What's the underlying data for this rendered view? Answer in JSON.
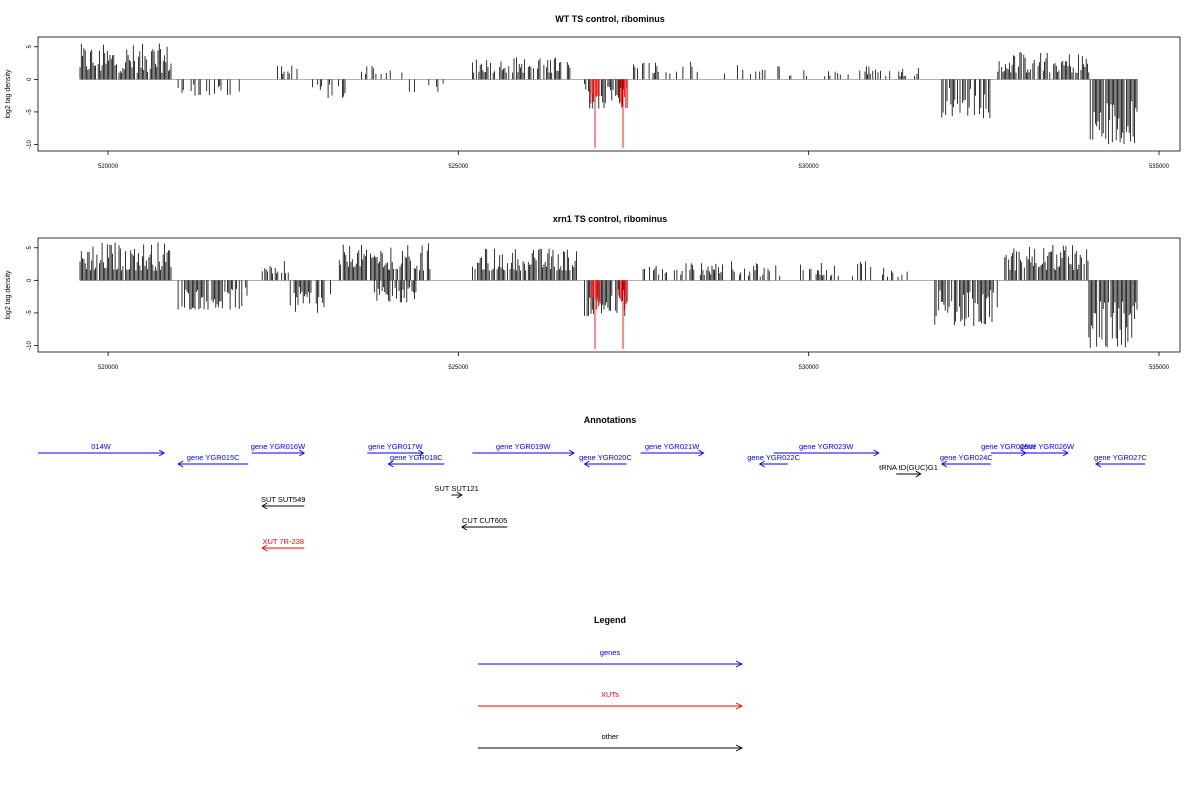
{
  "chart_data": [
    {
      "type": "bar",
      "title": "WT TS control, ribominus",
      "ylabel": "log2 tag density",
      "xlabel": "",
      "xlim": [
        519000,
        535300
      ],
      "ylim": [
        -11,
        6.5
      ],
      "x_ticks": [
        520000,
        525000,
        530000,
        535000
      ],
      "x_tick_labels": [
        "520000",
        "525000",
        "530000",
        "535000"
      ],
      "y_ticks": [
        -10,
        -5,
        0,
        5
      ],
      "y_tick_labels": [
        "-10",
        "-5",
        "0",
        "5"
      ],
      "grid": false,
      "colors": {
        "bars": "#000000",
        "highlight": "#ff0000",
        "baseline": "#999999"
      },
      "series": [
        {
          "values": [
            {
              "start": 519600,
              "end": 520900,
              "min": 1.0,
              "max": 5.5,
              "density": 0.9
            },
            {
              "start": 521000,
              "end": 521900,
              "min": -2.5,
              "max": -0.5,
              "density": 0.35
            },
            {
              "start": 522400,
              "end": 522700,
              "min": 0.8,
              "max": 2.2,
              "density": 0.5
            },
            {
              "start": 522900,
              "end": 523400,
              "min": -3.0,
              "max": -0.5,
              "density": 0.35
            },
            {
              "start": 523600,
              "end": 524200,
              "min": 0.8,
              "max": 2.5,
              "density": 0.45
            },
            {
              "start": 524300,
              "end": 524900,
              "min": -2.0,
              "max": -0.5,
              "density": 0.3
            },
            {
              "start": 525200,
              "end": 526600,
              "min": 1.0,
              "max": 3.5,
              "density": 0.6
            },
            {
              "start": 526800,
              "end": 527400,
              "min": -4.5,
              "max": -0.5,
              "density": 0.7
            },
            {
              "start": 527500,
              "end": 528500,
              "min": 0.8,
              "max": 2.8,
              "density": 0.4
            },
            {
              "start": 528800,
              "end": 531600,
              "min": 0.5,
              "max": 2.2,
              "density": 0.25
            },
            {
              "start": 531900,
              "end": 532600,
              "min": -6.0,
              "max": -1.0,
              "density": 0.7
            },
            {
              "start": 532700,
              "end": 534000,
              "min": 1.0,
              "max": 4.2,
              "density": 0.8
            },
            {
              "start": 534000,
              "end": 534700,
              "min": -10.0,
              "max": -3.0,
              "density": 0.9
            }
          ],
          "highlights": [
            {
              "x": 526950,
              "y": -10.5
            },
            {
              "x": 527350,
              "y": -10.5
            }
          ]
        }
      ]
    },
    {
      "type": "bar",
      "title": "xrn1 TS control, ribominus",
      "ylabel": "log2 tag density",
      "xlabel": "",
      "xlim": [
        519000,
        535300
      ],
      "ylim": [
        -11,
        6.5
      ],
      "x_ticks": [
        520000,
        525000,
        530000,
        535000
      ],
      "x_tick_labels": [
        "520000",
        "525000",
        "530000",
        "535000"
      ],
      "y_ticks": [
        -10,
        -5,
        0,
        5
      ],
      "y_tick_labels": [
        "-10",
        "-5",
        "0",
        "5"
      ],
      "grid": false,
      "colors": {
        "bars": "#000000",
        "highlight": "#ff0000",
        "baseline": "#999999"
      },
      "series": [
        {
          "values": [
            {
              "start": 519600,
              "end": 520900,
              "min": 1.5,
              "max": 6.0,
              "density": 0.95
            },
            {
              "start": 521000,
              "end": 522000,
              "min": -4.5,
              "max": -1.0,
              "density": 0.8
            },
            {
              "start": 522200,
              "end": 522600,
              "min": 1.0,
              "max": 3.0,
              "density": 0.6
            },
            {
              "start": 522600,
              "end": 523200,
              "min": -5.0,
              "max": -1.0,
              "density": 0.7
            },
            {
              "start": 523300,
              "end": 524000,
              "min": 2.0,
              "max": 5.5,
              "density": 0.9
            },
            {
              "start": 523800,
              "end": 524400,
              "min": -3.5,
              "max": -1.0,
              "density": 0.5
            },
            {
              "start": 524000,
              "end": 524600,
              "min": 1.5,
              "max": 6.0,
              "density": 0.8
            },
            {
              "start": 525200,
              "end": 526700,
              "min": 1.5,
              "max": 5.0,
              "density": 0.85
            },
            {
              "start": 526800,
              "end": 527400,
              "min": -5.5,
              "max": -1.0,
              "density": 0.9
            },
            {
              "start": 527600,
              "end": 528800,
              "min": 0.8,
              "max": 3.0,
              "density": 0.55
            },
            {
              "start": 528900,
              "end": 531500,
              "min": 0.5,
              "max": 3.0,
              "density": 0.35
            },
            {
              "start": 531800,
              "end": 532700,
              "min": -7.0,
              "max": -1.5,
              "density": 0.85
            },
            {
              "start": 532800,
              "end": 534000,
              "min": 1.5,
              "max": 5.5,
              "density": 0.9
            },
            {
              "start": 534000,
              "end": 534700,
              "min": -10.5,
              "max": -3.0,
              "density": 0.95
            }
          ],
          "highlights": [
            {
              "x": 526950,
              "y": -10.5
            },
            {
              "x": 527350,
              "y": -10.5
            }
          ]
        }
      ]
    }
  ],
  "annotations": {
    "title": "Annotations",
    "xlim": [
      519000,
      535300
    ],
    "items": [
      {
        "label": "014W",
        "start": 519000,
        "end": 520800,
        "strand": "+",
        "type": "genes",
        "row": 0
      },
      {
        "label": "gene YGR015C",
        "start": 521000,
        "end": 522000,
        "strand": "-",
        "type": "genes",
        "row": 1
      },
      {
        "label": "gene YGR016W",
        "start": 522050,
        "end": 522800,
        "strand": "+",
        "type": "genes",
        "row": 0
      },
      {
        "label": "gene YGR017W",
        "start": 523700,
        "end": 524500,
        "strand": "+",
        "type": "genes",
        "row": 0
      },
      {
        "label": "gene YGR018C",
        "start": 524000,
        "end": 524800,
        "strand": "-",
        "type": "genes",
        "row": 1
      },
      {
        "label": "gene YGR019W",
        "start": 525200,
        "end": 526650,
        "strand": "+",
        "type": "genes",
        "row": 0
      },
      {
        "label": "gene YGR020C",
        "start": 526800,
        "end": 527400,
        "strand": "-",
        "type": "genes",
        "row": 1
      },
      {
        "label": "gene YGR021W",
        "start": 527600,
        "end": 528500,
        "strand": "+",
        "type": "genes",
        "row": 0
      },
      {
        "label": "gene YGR022C",
        "start": 529300,
        "end": 529700,
        "strand": "-",
        "type": "genes",
        "row": 1
      },
      {
        "label": "gene YGR023W",
        "start": 529500,
        "end": 531000,
        "strand": "+",
        "type": "genes",
        "row": 0
      },
      {
        "label": "tRNA tD(GUC)G1",
        "start": 531250,
        "end": 531600,
        "strand": "+",
        "type": "other",
        "row": 2
      },
      {
        "label": "gene YGR024C",
        "start": 531900,
        "end": 532600,
        "strand": "-",
        "type": "genes",
        "row": 1
      },
      {
        "label": "gene YGR025W",
        "start": 532600,
        "end": 533100,
        "strand": "+",
        "type": "genes",
        "row": 0
      },
      {
        "label": "gene YGR026W",
        "start": 533100,
        "end": 533700,
        "strand": "+",
        "type": "genes",
        "row": 0
      },
      {
        "label": "gene YGR027C",
        "start": 534100,
        "end": 534800,
        "strand": "-",
        "type": "genes",
        "row": 1
      },
      {
        "label": "SUT SUT549",
        "start": 522200,
        "end": 522800,
        "strand": "-",
        "type": "other",
        "row": 3
      },
      {
        "label": "SUT SUT121",
        "start": 524900,
        "end": 525050,
        "strand": "+",
        "type": "other",
        "row": 4
      },
      {
        "label": "CUT CUT605",
        "start": 525050,
        "end": 525700,
        "strand": "-",
        "type": "other",
        "row": 5
      },
      {
        "label": "XUT 7R-238",
        "start": 522200,
        "end": 522800,
        "strand": "-",
        "type": "XUTs",
        "row": 6
      }
    ]
  },
  "legend": {
    "title": "Legend",
    "items": [
      {
        "label": "genes",
        "color": "#0000ff"
      },
      {
        "label": "XUTs",
        "color": "#ff0000"
      },
      {
        "label": "other",
        "color": "#000000"
      }
    ]
  }
}
